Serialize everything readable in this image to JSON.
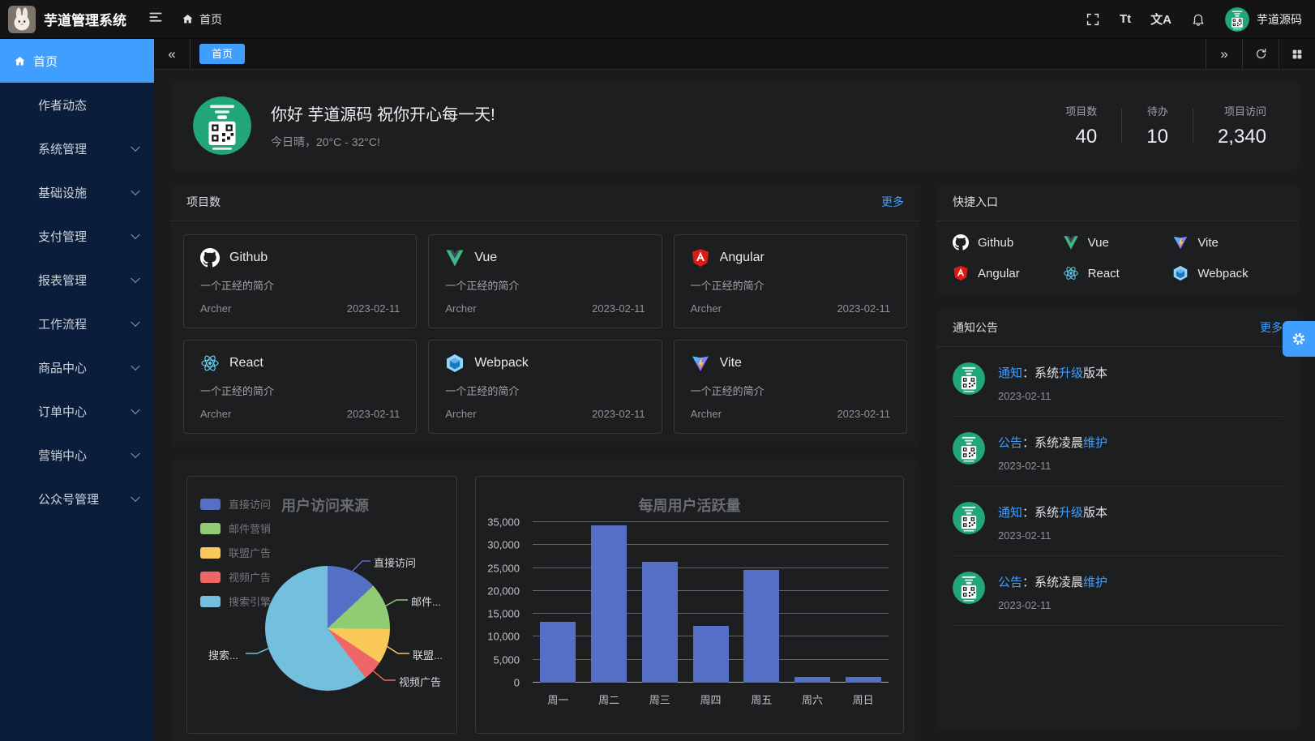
{
  "app": {
    "title": "芋道管理系统"
  },
  "header": {
    "breadcrumb": "首页",
    "font_size_icon_text": "Tt",
    "locale_icon_text": "文A",
    "user_name": "芋道源码"
  },
  "tabbar": {
    "active_tab": "首页",
    "collapse_glyph": "«",
    "expand_glyph": "»"
  },
  "sidebar": {
    "items": [
      {
        "label": "首页",
        "active": true,
        "chevron": false
      },
      {
        "label": "作者动态",
        "chevron": false
      },
      {
        "label": "系统管理",
        "chevron": true
      },
      {
        "label": "基础设施",
        "chevron": true
      },
      {
        "label": "支付管理",
        "chevron": true
      },
      {
        "label": "报表管理",
        "chevron": true
      },
      {
        "label": "工作流程",
        "chevron": true
      },
      {
        "label": "商品中心",
        "chevron": true
      },
      {
        "label": "订单中心",
        "chevron": true
      },
      {
        "label": "营销中心",
        "chevron": true
      },
      {
        "label": "公众号管理",
        "chevron": true
      }
    ]
  },
  "welcome": {
    "greeting": "你好 芋道源码 祝你开心每一天!",
    "weather": "今日晴，20°C - 32°C!",
    "stats": [
      {
        "label": "项目数",
        "value": "40"
      },
      {
        "label": "待办",
        "value": "10"
      },
      {
        "label": "项目访问",
        "value": "2,340"
      }
    ]
  },
  "projects": {
    "title": "项目数",
    "more_label": "更多",
    "shared_desc": "一个正经的简介",
    "shared_author": "Archer",
    "shared_date": "2023-02-11",
    "items": [
      {
        "name": "Github"
      },
      {
        "name": "Vue"
      },
      {
        "name": "Angular"
      },
      {
        "name": "React"
      },
      {
        "name": "Webpack"
      },
      {
        "name": "Vite"
      }
    ]
  },
  "shortcuts": {
    "title": "快捷入口",
    "items": [
      {
        "label": "Github"
      },
      {
        "label": "Vue"
      },
      {
        "label": "Vite"
      },
      {
        "label": "Angular"
      },
      {
        "label": "React"
      },
      {
        "label": "Webpack"
      }
    ]
  },
  "notices": {
    "title": "通知公告",
    "more_label": "更多",
    "items": [
      {
        "tag": "通知",
        "mid": "：系统",
        "hl": "升级",
        "tail": "版本",
        "date": "2023-02-11"
      },
      {
        "tag": "公告",
        "mid": "：系统凌晨",
        "hl": "维护",
        "tail": "",
        "date": "2023-02-11"
      },
      {
        "tag": "通知",
        "mid": "：系统",
        "hl": "升级",
        "tail": "版本",
        "date": "2023-02-11"
      },
      {
        "tag": "公告",
        "mid": "：系统凌晨",
        "hl": "维护",
        "tail": "",
        "date": "2023-02-11"
      }
    ]
  },
  "chart_data": [
    {
      "type": "pie",
      "title": "用户访问来源",
      "labels": [
        "直接访问",
        "邮件营销",
        "联盟广告",
        "视频广告",
        "搜索引擎"
      ],
      "values": [
        335,
        310,
        234,
        135,
        1548
      ],
      "colors": [
        "#5470c6",
        "#91cc75",
        "#fac858",
        "#ee6666",
        "#73c0de"
      ],
      "callout_labels": [
        "直接访问",
        "邮件...",
        "联盟...",
        "视频广告",
        "搜索..."
      ],
      "legend_position": "top-left",
      "start_angle_deg": 0
    },
    {
      "type": "bar",
      "title": "每周用户活跃量",
      "categories": [
        "周一",
        "周二",
        "周三",
        "周四",
        "周五",
        "周六",
        "周日"
      ],
      "values": [
        13253,
        34235,
        26321,
        12340,
        24643,
        1322,
        1324
      ],
      "bar_color": "#5470c6",
      "ylim": [
        0,
        35000
      ],
      "ytick_step": 5000,
      "grid": true
    }
  ],
  "colors": {
    "accent": "#409eff",
    "sidebar_bg": "#0a1d3a",
    "header_bg": "#141414",
    "page_bg": "#1a1b1d",
    "card_bg": "#1d1e20",
    "qr_green": "#21a67a"
  }
}
